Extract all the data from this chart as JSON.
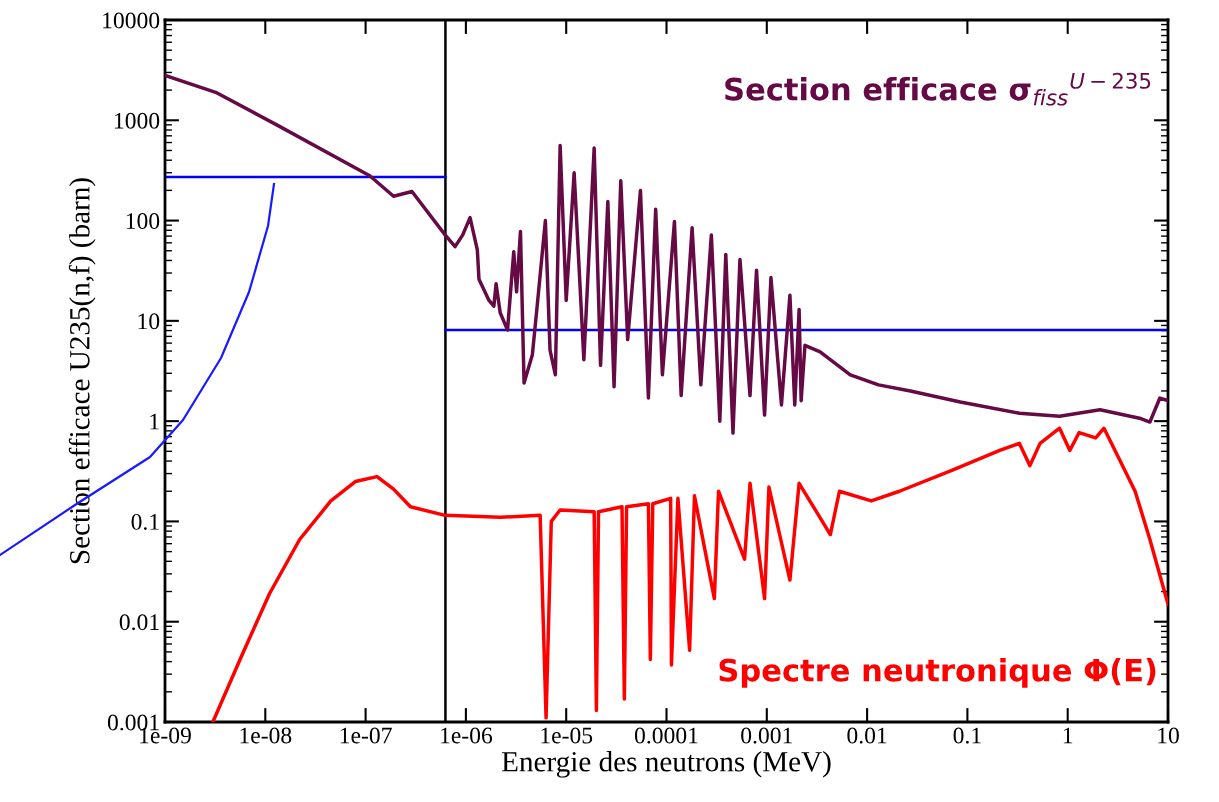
{
  "chart_data": {
    "type": "line",
    "log": "xy",
    "xlabel": "Energie des neutrons (MeV)",
    "ylabel": "Section efficace U235(n,f) (barn)",
    "xlim": [
      1e-09,
      10
    ],
    "ylim": [
      0.001,
      10000
    ],
    "xticks": [
      {
        "value": 1e-09,
        "label": "1e-09"
      },
      {
        "value": 1e-08,
        "label": "1e-08"
      },
      {
        "value": 1e-07,
        "label": "1e-07"
      },
      {
        "value": 1e-06,
        "label": "1e-06"
      },
      {
        "value": 1e-05,
        "label": "1e-05"
      },
      {
        "value": 0.0001,
        "label": "0.0001"
      },
      {
        "value": 0.001,
        "label": "0.001"
      },
      {
        "value": 0.01,
        "label": "0.01"
      },
      {
        "value": 0.1,
        "label": "0.1"
      },
      {
        "value": 1,
        "label": "1"
      },
      {
        "value": 10,
        "label": "10"
      }
    ],
    "yticks": [
      0.001,
      0.01,
      0.1,
      1,
      10,
      100,
      1000,
      10000
    ],
    "grid": false,
    "legend": false,
    "marker": "none",
    "line_style": "solid",
    "ref_lines": [
      {
        "axis": "x",
        "value": 6.25e-07,
        "color": "#000000"
      }
    ],
    "series": [
      {
        "name": "Section efficace σ$_{fiss}$$^{U−235}$",
        "color": "#660a45",
        "x": [
          1e-09,
          3.2e-09,
          1.3e-08,
          1.1e-07,
          1.9e-07,
          2.9e-07,
          6.2e-07,
          7.8e-07,
          9.3e-07,
          1.1e-06,
          1.3e-06,
          1.35e-06,
          1.7e-06,
          1.9e-06,
          2e-06,
          2.2e-06,
          2.6e-06,
          3e-06,
          3.2e-06,
          3.5e-06,
          3.8e-06,
          4.6e-06,
          5.2e-06,
          6.2e-06,
          6.9e-06,
          7.8e-06,
          8.7e-06,
          1e-05,
          1.2e-05,
          1.5e-05,
          1.9e-05,
          2.2e-05,
          2.6e-05,
          3e-05,
          3.5e-05,
          4.1e-05,
          5.5e-05,
          6.6e-05,
          7.8e-05,
          9.1e-05,
          0.00012,
          0.00014,
          0.00018,
          0.00022,
          0.00028,
          0.00034,
          0.00039,
          0.00046,
          0.00054,
          0.00068,
          0.00079,
          0.00095,
          0.0011,
          0.0014,
          0.0017,
          0.0019,
          0.0021,
          0.0022,
          0.0024,
          0.0034,
          0.0068,
          0.013,
          0.027,
          0.085,
          0.33,
          0.83,
          2.1,
          5.2,
          6.6,
          8.3,
          10
        ],
        "values": [
          2800,
          1900,
          900,
          280,
          175,
          195,
          72,
          55,
          72,
          107,
          51,
          26,
          16,
          14,
          23.5,
          12,
          8.1,
          49,
          19.5,
          78,
          2.4,
          4.6,
          16,
          100,
          5.1,
          2.9,
          560,
          16,
          300,
          4.1,
          530,
          3.6,
          155,
          2.2,
          250,
          6.5,
          200,
          1.7,
          130,
          2.9,
          98,
          1.8,
          85,
          2.3,
          72,
          1.0,
          46,
          0.76,
          41,
          1.8,
          32,
          1.15,
          27,
          1.45,
          18,
          1.45,
          13,
          1.6,
          5.7,
          4.9,
          2.9,
          2.3,
          2.0,
          1.55,
          1.2,
          1.12,
          1.3,
          1.07,
          0.98,
          1.7,
          1.6
        ]
      },
      {
        "name": "Spectre neutronique Φ(E)",
        "color": "#ff0000",
        "x": [
          3e-09,
          5.6e-09,
          1.1e-08,
          2.2e-08,
          4.5e-08,
          7.9e-08,
          1.3e-07,
          1.9e-07,
          2.8e-07,
          6.2e-07,
          2.2e-06,
          5.5e-06,
          6.3e-06,
          7.1e-06,
          8.7e-06,
          1.9e-05,
          2e-05,
          2.1e-05,
          3.6e-05,
          3.8e-05,
          4e-05,
          6.6e-05,
          6.9e-05,
          7.3e-05,
          0.00011,
          0.000112,
          0.00013,
          0.00017,
          0.00019,
          0.0003,
          0.00033,
          0.0006,
          0.00068,
          0.00095,
          0.00105,
          0.0017,
          0.0021,
          0.0043,
          0.0053,
          0.011,
          0.021,
          0.068,
          0.21,
          0.33,
          0.42,
          0.53,
          0.83,
          1.05,
          1.3,
          1.9,
          2.3,
          3.3,
          4.7,
          6.6,
          10
        ],
        "values": [
          0.001,
          0.0042,
          0.019,
          0.066,
          0.16,
          0.25,
          0.28,
          0.21,
          0.14,
          0.115,
          0.11,
          0.115,
          0.0011,
          0.1,
          0.13,
          0.125,
          0.0013,
          0.125,
          0.14,
          0.0017,
          0.14,
          0.15,
          0.0042,
          0.15,
          0.17,
          0.0037,
          0.17,
          0.0052,
          0.18,
          0.017,
          0.2,
          0.042,
          0.24,
          0.017,
          0.22,
          0.026,
          0.24,
          0.074,
          0.2,
          0.16,
          0.2,
          0.32,
          0.51,
          0.6,
          0.36,
          0.6,
          0.85,
          0.51,
          0.77,
          0.68,
          0.85,
          0.41,
          0.2,
          0.066,
          0.015
        ]
      },
      {
        "color": "#0000ff",
        "x": [
          1e-09,
          6.25e-07
        ],
        "values": [
          272,
          272
        ]
      },
      {
        "color": "#0000ff",
        "x": [
          6.25e-07,
          10
        ],
        "values": [
          8.1,
          8.1
        ]
      }
    ]
  }
}
